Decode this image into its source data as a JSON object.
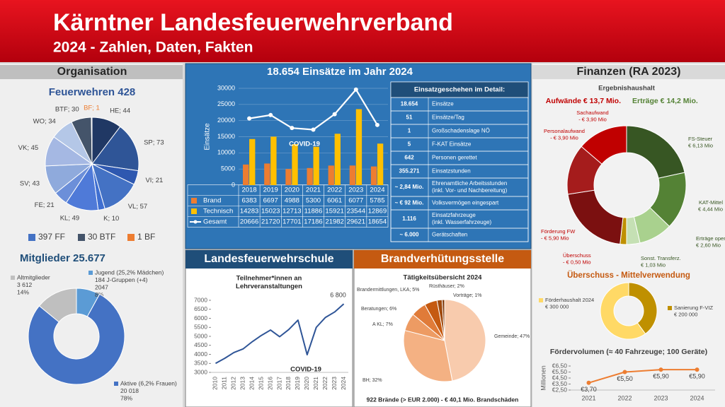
{
  "header": {
    "title": "Kärntner Landesfeuerwehrverband",
    "subtitle": "2024 - Zahlen, Daten, Fakten"
  },
  "sections": {
    "organisation": "Organisation",
    "finanzen": "Finanzen (RA 2023)",
    "schule": "Landesfeuerwehrschule",
    "bvs": "Brandverhütungsstelle"
  },
  "detail_table": {
    "title": "Einsatzgeschehen im Detail:",
    "rows": [
      [
        "18.654",
        "Einsätze"
      ],
      [
        "51",
        "Einsätze/Tag"
      ],
      [
        "1",
        "Großschadenslage NÖ"
      ],
      [
        "5",
        "F-KAT Einsätze"
      ],
      [
        "642",
        "Personen gerettet"
      ],
      [
        "355.271",
        "Einsatzstunden"
      ],
      [
        "~ 2,84 Mio.",
        "Ehrenamtliche Arbeitsstunden",
        "(inkl. Vor- und Nachbereitung)"
      ],
      [
        "~ € 92 Mio.",
        "Volksvermögen eingespart"
      ],
      [
        "1.116",
        "Einsatzfahrzeuge",
        "(inkl. Wasserfahrzeuge)"
      ],
      [
        "~ 6.000",
        "Gerätschaften"
      ]
    ]
  },
  "chart_data": [
    {
      "type": "pie",
      "title": "Feuerwehren 428",
      "values": [
        44,
        73,
        21,
        57,
        10,
        49,
        21,
        43,
        45,
        34,
        30,
        1
      ],
      "value_labels": [
        "HE; 44",
        "SP; 73",
        "VI; 21",
        "VL; 57",
        "K; 10",
        "KL; 49",
        "FE; 21",
        "SV; 43",
        "VK; 45",
        "WO; 34",
        "BTF; 30",
        "BF; 1"
      ],
      "colors": [
        "#203864",
        "#2f5597",
        "#2e58b0",
        "#4472c4",
        "#3f6fd1",
        "#4f7ad8",
        "#6c8fd9",
        "#8faadc",
        "#a5b8e3",
        "#b4c7e7",
        "#44546a",
        "#ed7d31"
      ],
      "legend": [
        {
          "label": "397 FF",
          "color": "#4472c4"
        },
        {
          "label": "30 BTF",
          "color": "#44546a"
        },
        {
          "label": "1 BF",
          "color": "#ed7d31"
        }
      ]
    },
    {
      "type": "donut",
      "title": "Mitglieder 25.677",
      "categories": [
        "Jugend (25,2% Mädchen)",
        "Aktive (6,2% Frauen)",
        "Altmitglieder"
      ],
      "notes": [
        "184 J-Gruppen (+4)",
        null,
        null
      ],
      "values": [
        2047,
        20018,
        3612
      ],
      "value_labels": [
        "2047",
        "20 018",
        "3 612"
      ],
      "share_labels": [
        "8%",
        "78%",
        "14%"
      ],
      "colors": [
        "#5b9bd5",
        "#4472c4",
        "#bfbfbf"
      ]
    },
    {
      "type": "bar",
      "title": "18.654 Einsätze im Jahr 2024",
      "y_label": "Einsätze",
      "categories": [
        "2018",
        "2019",
        "2020",
        "2021",
        "2022",
        "2023",
        "2024"
      ],
      "series": [
        {
          "name": "Brand",
          "color": "#ed7d31",
          "values": [
            6383,
            6697,
            4988,
            5300,
            6061,
            6077,
            5785
          ]
        },
        {
          "name": "Technisch",
          "color": "#ffc000",
          "values": [
            14283,
            15023,
            12713,
            11886,
            15921,
            23544,
            12869
          ]
        },
        {
          "name": "Gesamt",
          "type": "line",
          "color": "#ffffff",
          "values": [
            20666,
            21720,
            17701,
            17186,
            21982,
            29621,
            18654
          ]
        }
      ],
      "ylim": [
        0,
        30000
      ],
      "yticks": [
        0,
        5000,
        10000,
        15000,
        20000,
        25000,
        30000
      ],
      "grid": true,
      "annotation": "COVID-19"
    },
    {
      "type": "line",
      "title": [
        "Teilnehmer*innen an",
        "Lehrveranstaltungen"
      ],
      "categories": [
        "2010",
        "2011",
        "2012",
        "2013",
        "2014",
        "2015",
        "2016",
        "2017",
        "2018",
        "2019",
        "2020",
        "2021",
        "2022",
        "2023",
        "2024"
      ],
      "values": [
        3500,
        3780,
        4100,
        4300,
        4700,
        5050,
        5350,
        4980,
        5380,
        5900,
        3980,
        5500,
        6050,
        6350,
        6800
      ],
      "value_labels": [
        null,
        null,
        null,
        null,
        null,
        null,
        null,
        null,
        null,
        null,
        null,
        null,
        null,
        null,
        "6 800"
      ],
      "color": "#2f5597",
      "ylim": [
        3000,
        7000
      ],
      "yticks": [
        3000,
        3500,
        4000,
        4500,
        5000,
        5500,
        6000,
        6500,
        7000
      ],
      "annotation": "COVID-19"
    },
    {
      "type": "pie",
      "title": "Tätigkeitsübersicht 2024",
      "values": [
        47,
        32,
        7,
        6,
        5,
        2,
        1
      ],
      "value_labels": [
        "Gemeinde; 47%",
        "BH; 32%",
        "A KL; 7%",
        "Beratungen; 6%",
        "Brandermittlungen, LKA; 5%",
        "Rüsthäuser; 2%",
        "Vorträge; 1%"
      ],
      "colors": [
        "#f8cbad",
        "#f4b183",
        "#ed9b63",
        "#e07b39",
        "#c55a11",
        "#a04a0e",
        "#843c0c"
      ],
      "footer": "922 Brände (> EUR 2.000) - € 40,1 Mio. Brandschäden"
    },
    {
      "type": "donut",
      "title": "Ergebnishaushalt",
      "totals": [
        {
          "label": "Aufwände € 13,7 Mio.",
          "color": "#c00000"
        },
        {
          "label": "Erträge € 14,2 Mio.",
          "color": "#548235"
        }
      ],
      "categories": [
        "FS-Steuer",
        "KAT-Mittel",
        "Erträge operativ",
        "Sonst. Transferz.",
        "Überschuss",
        "Förderung FW",
        "Personalaufwand",
        "Sachaufwand"
      ],
      "values": [
        6.13,
        4.44,
        2.6,
        1.03,
        -0.5,
        -5.9,
        -3.9,
        -3.9
      ],
      "value_labels": [
        "€ 6,13 Mio",
        "€ 4,44 Mio",
        "€ 2,60 Mio",
        "€ 1,03 Mio",
        "- € 0,50 Mio",
        "- € 5,90 Mio",
        "- € 3,90 Mio",
        "- € 3,90 Mio"
      ],
      "colors": [
        "#375623",
        "#548235",
        "#a9d18e",
        "#c5e0b4",
        "#bf9000",
        "#7b1010",
        "#a51c1c",
        "#c00000"
      ]
    },
    {
      "type": "donut",
      "title": "Überschuss - Mittelverwendung",
      "categories": [
        "Sanierung F-VIZ",
        "Förderhaushalt 2024"
      ],
      "values": [
        200000,
        300000
      ],
      "value_labels": [
        "€ 200 000",
        "€ 300 000"
      ],
      "colors": [
        "#bf9000",
        "#ffd966"
      ]
    },
    {
      "type": "line",
      "title": "Fördervolumen (≈ 40 Fahrzeuge; 100 Geräte)",
      "y_label": "Millionen",
      "categories": [
        "2021",
        "2022",
        "2023",
        "2024"
      ],
      "values": [
        3.7,
        5.5,
        5.9,
        5.9
      ],
      "value_labels": [
        "€3,70",
        "€5,50",
        "€5,90",
        "€5,90"
      ],
      "color": "#ed7d31",
      "ylim": [
        2.5,
        6.5
      ],
      "yticks": [
        {
          "value": 2.5,
          "label": "€2,50"
        },
        {
          "value": 3.5,
          "label": "€3,50"
        },
        {
          "value": 4.5,
          "label": "€4,50"
        },
        {
          "value": 5.5,
          "label": "€5,50"
        },
        {
          "value": 6.5,
          "label": "€6,50"
        }
      ]
    }
  ]
}
